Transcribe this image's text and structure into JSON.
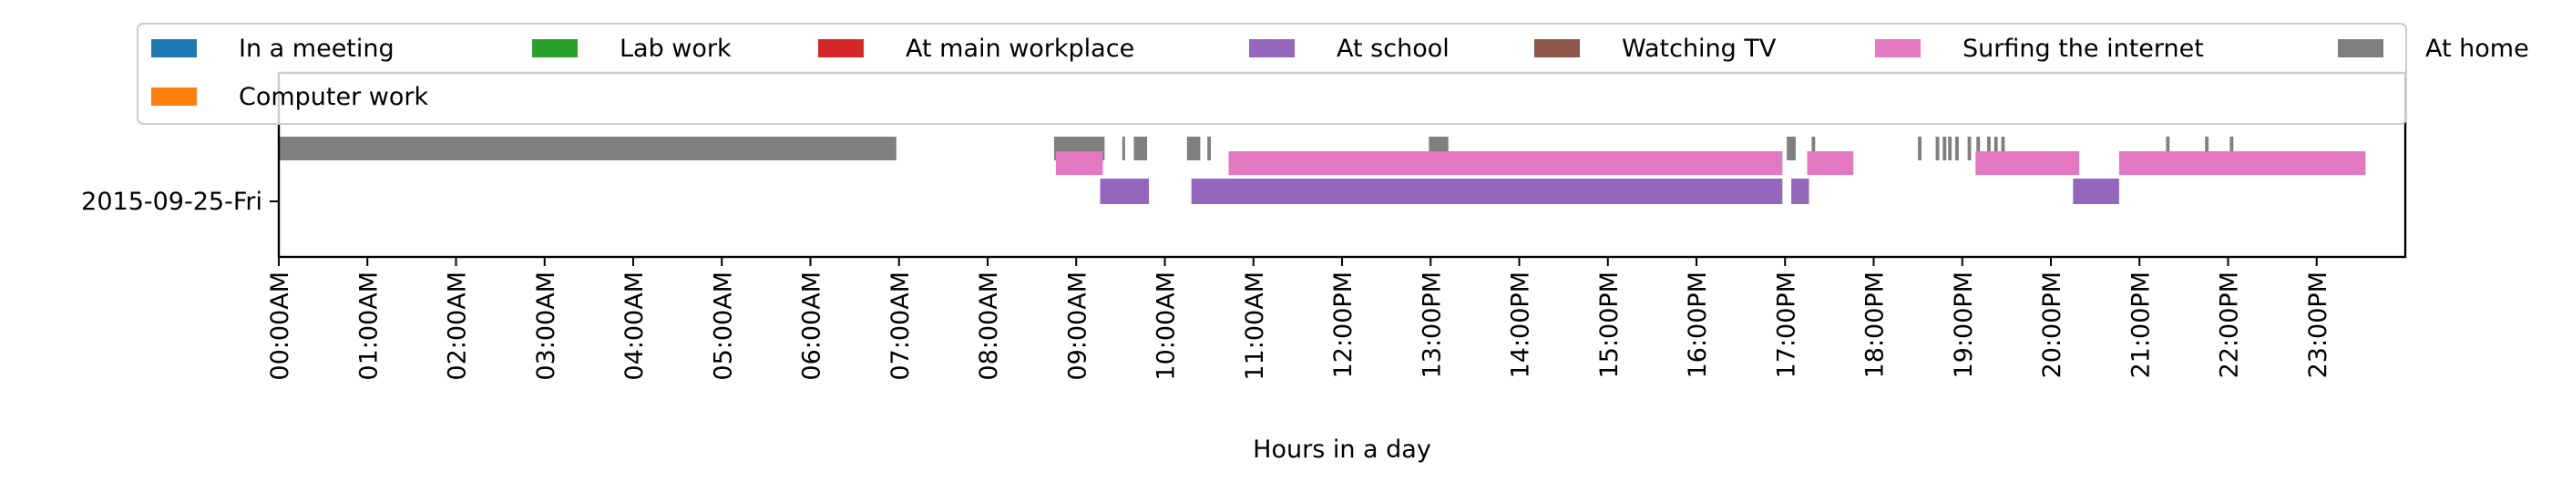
{
  "chart_data": {
    "type": "timeline",
    "title": "",
    "xlabel": "Hours in a day",
    "ylabel": "",
    "xlim_hours": [
      0,
      24
    ],
    "x_ticks": [
      {
        "hour": 0,
        "label": "00:00AM"
      },
      {
        "hour": 1,
        "label": "01:00AM"
      },
      {
        "hour": 2,
        "label": "02:00AM"
      },
      {
        "hour": 3,
        "label": "03:00AM"
      },
      {
        "hour": 4,
        "label": "04:00AM"
      },
      {
        "hour": 5,
        "label": "05:00AM"
      },
      {
        "hour": 6,
        "label": "06:00AM"
      },
      {
        "hour": 7,
        "label": "07:00AM"
      },
      {
        "hour": 8,
        "label": "08:00AM"
      },
      {
        "hour": 9,
        "label": "09:00AM"
      },
      {
        "hour": 10,
        "label": "10:00AM"
      },
      {
        "hour": 11,
        "label": "11:00AM"
      },
      {
        "hour": 12,
        "label": "12:00PM"
      },
      {
        "hour": 13,
        "label": "13:00PM"
      },
      {
        "hour": 14,
        "label": "14:00PM"
      },
      {
        "hour": 15,
        "label": "15:00PM"
      },
      {
        "hour": 16,
        "label": "16:00PM"
      },
      {
        "hour": 17,
        "label": "17:00PM"
      },
      {
        "hour": 18,
        "label": "18:00PM"
      },
      {
        "hour": 19,
        "label": "19:00PM"
      },
      {
        "hour": 20,
        "label": "20:00PM"
      },
      {
        "hour": 21,
        "label": "21:00PM"
      },
      {
        "hour": 22,
        "label": "22:00PM"
      },
      {
        "hour": 23,
        "label": "23:00PM"
      }
    ],
    "y_label": "2015-09-25-Fri",
    "legend_position": "top",
    "grid": false,
    "legend": [
      {
        "name": "In a meeting",
        "color": "#1f77b4"
      },
      {
        "name": "Computer work",
        "color": "#ff7f0e"
      },
      {
        "name": "Lab work",
        "color": "#2ca02c"
      },
      {
        "name": "At main workplace",
        "color": "#d62728"
      },
      {
        "name": "At school",
        "color": "#9467bd"
      },
      {
        "name": "Watching TV",
        "color": "#8c564b"
      },
      {
        "name": "Surfing the internet",
        "color": "#e377c2"
      },
      {
        "name": "At home",
        "color": "#7f7f7f"
      }
    ],
    "series": [
      {
        "name": "At home",
        "color": "#7f7f7f",
        "lane": "top",
        "intervals": [
          [
            0.0,
            6.97
          ],
          [
            8.75,
            9.32
          ],
          [
            9.52,
            9.55
          ],
          [
            9.65,
            9.8
          ],
          [
            10.25,
            10.4
          ],
          [
            10.48,
            10.52
          ],
          [
            12.98,
            13.2
          ],
          [
            17.02,
            17.12
          ],
          [
            17.3,
            17.34
          ],
          [
            18.5,
            18.54
          ],
          [
            18.7,
            18.74
          ],
          [
            18.78,
            18.82
          ],
          [
            18.84,
            18.88
          ],
          [
            18.92,
            18.96
          ],
          [
            19.06,
            19.1
          ],
          [
            19.16,
            19.2
          ],
          [
            19.28,
            19.32
          ],
          [
            19.36,
            19.4
          ],
          [
            19.44,
            19.48
          ],
          [
            21.3,
            21.34
          ],
          [
            21.74,
            21.78
          ],
          [
            22.02,
            22.06
          ]
        ]
      },
      {
        "name": "Surfing the internet",
        "color": "#e377c2",
        "lane": "middle",
        "intervals": [
          [
            8.77,
            9.3
          ],
          [
            10.72,
            16.97
          ],
          [
            17.25,
            17.77
          ],
          [
            19.15,
            20.32
          ],
          [
            20.77,
            23.55
          ]
        ]
      },
      {
        "name": "At school",
        "color": "#9467bd",
        "lane": "bottom",
        "intervals": [
          [
            9.27,
            9.82
          ],
          [
            10.3,
            16.97
          ],
          [
            17.07,
            17.27
          ],
          [
            20.25,
            20.77
          ]
        ]
      }
    ]
  }
}
